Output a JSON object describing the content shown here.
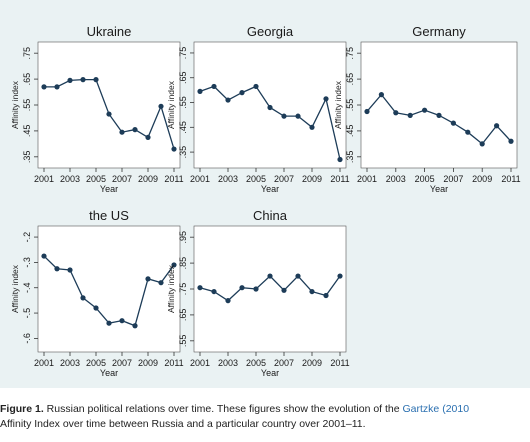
{
  "chart_data": [
    {
      "type": "line",
      "title": "Ukraine",
      "xlabel": "Year",
      "ylabel": "Affinity index",
      "x": [
        2001,
        2002,
        2003,
        2004,
        2005,
        2006,
        2007,
        2008,
        2009,
        2010,
        2011
      ],
      "values": [
        0.62,
        0.62,
        0.645,
        0.648,
        0.648,
        0.515,
        0.445,
        0.455,
        0.425,
        0.545,
        0.38
      ],
      "yticks": [
        0.35,
        0.45,
        0.55,
        0.65,
        0.75
      ],
      "ytick_labels": [
        ".35",
        ".45",
        ".55",
        ".65",
        ".75"
      ],
      "ylim": [
        0.33,
        0.77
      ],
      "xticks": [
        2001,
        2003,
        2005,
        2007,
        2009,
        2011
      ],
      "xtick_labels": [
        "2001",
        "2003",
        "2005",
        "2007",
        "2009",
        "2011"
      ],
      "grid": false
    },
    {
      "type": "line",
      "title": "Georgia",
      "xlabel": "Year",
      "ylabel": "Affinity index",
      "x": [
        2001,
        2002,
        2003,
        2004,
        2005,
        2006,
        2007,
        2008,
        2009,
        2010,
        2011
      ],
      "values": [
        0.595,
        0.615,
        0.56,
        0.59,
        0.615,
        0.53,
        0.495,
        0.495,
        0.45,
        0.565,
        0.32
      ],
      "yticks": [
        0.35,
        0.45,
        0.55,
        0.65,
        0.75
      ],
      "ytick_labels": [
        ".35",
        ".45",
        ".55",
        ".65",
        ".75"
      ],
      "ylim": [
        0.31,
        0.77
      ],
      "xticks": [
        2001,
        2003,
        2005,
        2007,
        2009,
        2011
      ],
      "xtick_labels": [
        "2001",
        "2003",
        "2005",
        "2007",
        "2009",
        "2011"
      ],
      "grid": false
    },
    {
      "type": "line",
      "title": "Germany",
      "xlabel": "Year",
      "ylabel": "Affinity index",
      "x": [
        2001,
        2002,
        2003,
        2004,
        2005,
        2006,
        2007,
        2008,
        2009,
        2010,
        2011
      ],
      "values": [
        0.525,
        0.59,
        0.52,
        0.51,
        0.53,
        0.51,
        0.48,
        0.445,
        0.4,
        0.47,
        0.41
      ],
      "yticks": [
        0.35,
        0.45,
        0.55,
        0.65,
        0.75
      ],
      "ytick_labels": [
        ".35",
        ".45",
        ".55",
        ".65",
        ".75"
      ],
      "ylim": [
        0.33,
        0.77
      ],
      "xticks": [
        2001,
        2003,
        2005,
        2007,
        2009,
        2011
      ],
      "xtick_labels": [
        "2001",
        "2003",
        "2005",
        "2007",
        "2009",
        "2011"
      ],
      "grid": false
    },
    {
      "type": "line",
      "title": "the US",
      "xlabel": "Year",
      "ylabel": "Affinity index",
      "x": [
        2001,
        2002,
        2003,
        2004,
        2005,
        2006,
        2007,
        2008,
        2009,
        2010,
        2011
      ],
      "values": [
        -0.275,
        -0.325,
        -0.33,
        -0.44,
        -0.48,
        -0.54,
        -0.53,
        -0.55,
        -0.365,
        -0.38,
        -0.31
      ],
      "yticks": [
        -0.6,
        -0.5,
        -0.4,
        -0.3,
        -0.2
      ],
      "ytick_labels": [
        "-.6",
        "-.5",
        "-.4",
        "-.3",
        "-.2"
      ],
      "ylim": [
        -0.63,
        -0.18
      ],
      "xticks": [
        2001,
        2003,
        2005,
        2007,
        2009,
        2011
      ],
      "xtick_labels": [
        "2001",
        "2003",
        "2005",
        "2007",
        "2009",
        "2011"
      ],
      "grid": false
    },
    {
      "type": "line",
      "title": "China",
      "xlabel": "Year",
      "ylabel": "Affinity index",
      "x": [
        2001,
        2002,
        2003,
        2004,
        2005,
        2006,
        2007,
        2008,
        2009,
        2010,
        2011
      ],
      "values": [
        0.755,
        0.74,
        0.705,
        0.755,
        0.75,
        0.8,
        0.745,
        0.8,
        0.74,
        0.725,
        0.8
      ],
      "yticks": [
        0.55,
        0.65,
        0.75,
        0.85,
        0.95
      ],
      "ytick_labels": [
        ".55",
        ".65",
        ".75",
        ".85",
        ".95"
      ],
      "ylim": [
        0.53,
        0.97
      ],
      "xticks": [
        2001,
        2003,
        2005,
        2007,
        2009,
        2011
      ],
      "xtick_labels": [
        "2001",
        "2003",
        "2005",
        "2007",
        "2009",
        "2011"
      ],
      "grid": false
    }
  ],
  "caption": {
    "lead": "Figure 1.",
    "text": " Russian political relations over time. These figures show the evolution of the ",
    "link": "Gartzke (2010",
    "line2": "Affinity Index over time between Russia and a particular country over 2001–11."
  },
  "colors": {
    "background": "#eaf2f3",
    "plot_region": "#ffffff",
    "line": "#1d3c58",
    "marker": "#1d3c58",
    "link": "#2a6fb0"
  }
}
